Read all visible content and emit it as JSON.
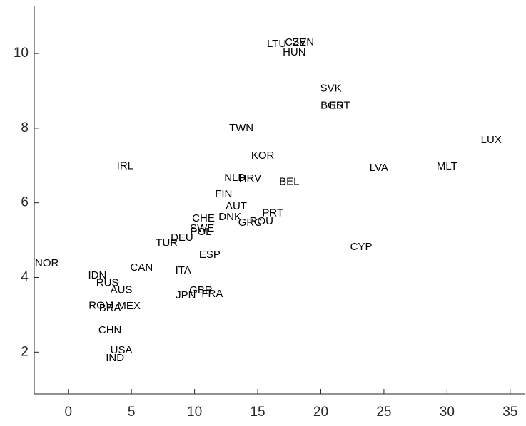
{
  "chart_data": {
    "type": "scatter",
    "labels": [
      "LTU",
      "CZE",
      "SVN",
      "HUN",
      "SVK",
      "BGR",
      "EST",
      "TWN",
      "LUX",
      "KOR",
      "IRL",
      "LVA",
      "MLT",
      "NLD",
      "HRV",
      "BEL",
      "FIN",
      "AUT",
      "PRT",
      "CHE",
      "DNK",
      "GRC",
      "ROU",
      "SWE",
      "POL",
      "DEU",
      "TUR",
      "ESP",
      "CYP",
      "NOR",
      "CAN",
      "ITA",
      "IDN",
      "RUS",
      "AUS",
      "GBR",
      "FRA",
      "JPN",
      "ROM",
      "BRA",
      "MEX",
      "CHN",
      "USA",
      "IND"
    ],
    "x": [
      16.5,
      18.0,
      18.6,
      17.9,
      20.8,
      20.9,
      21.5,
      13.7,
      33.5,
      15.4,
      4.5,
      24.6,
      30.0,
      13.2,
      14.4,
      17.5,
      12.3,
      13.3,
      16.2,
      10.7,
      12.8,
      14.4,
      15.3,
      10.6,
      10.5,
      9.0,
      7.8,
      11.2,
      23.2,
      -1.7,
      5.8,
      9.1,
      2.3,
      3.1,
      4.2,
      10.5,
      11.4,
      9.3,
      2.6,
      3.3,
      4.8,
      3.3,
      4.2,
      3.7
    ],
    "values": [
      10.25,
      10.29,
      10.3,
      10.02,
      9.06,
      8.6,
      8.6,
      8.0,
      7.67,
      7.25,
      6.98,
      6.93,
      6.97,
      6.66,
      6.64,
      6.56,
      6.22,
      5.9,
      5.72,
      5.57,
      5.61,
      5.46,
      5.5,
      5.31,
      5.21,
      5.06,
      4.92,
      4.6,
      4.81,
      4.37,
      4.26,
      4.18,
      4.05,
      3.85,
      3.66,
      3.65,
      3.55,
      3.51,
      3.24,
      3.17,
      3.23,
      2.58,
      2.04,
      1.83
    ],
    "color": "#000000",
    "xlim": [
      -2.7,
      36.2
    ],
    "xticks": [
      0,
      5,
      10,
      15,
      20,
      25,
      30,
      35
    ],
    "ylim": [
      0.88,
      11.28
    ],
    "yticks": [
      2,
      4,
      6,
      8,
      10
    ]
  }
}
